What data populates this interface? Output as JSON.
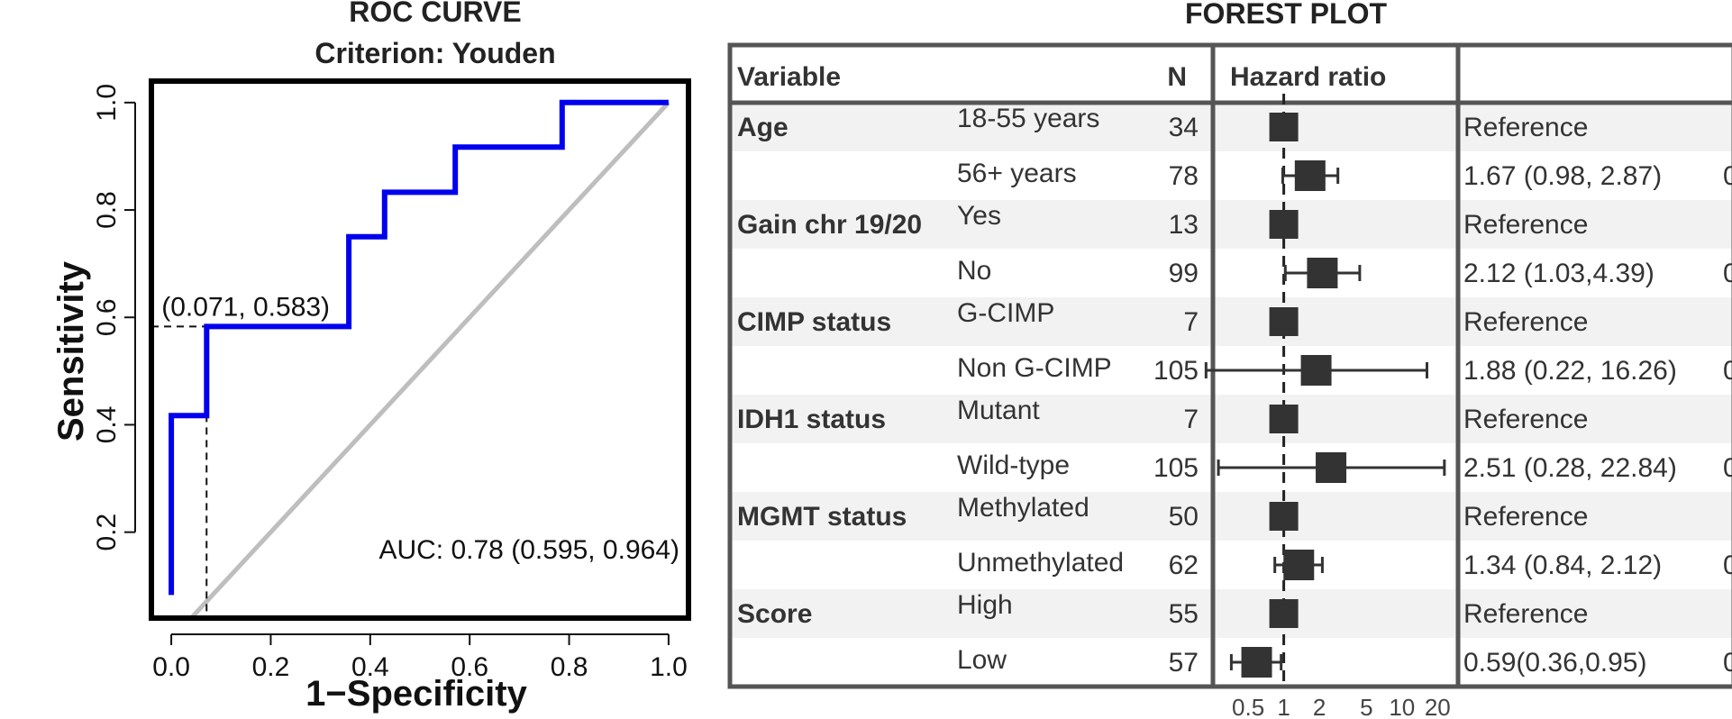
{
  "chart_data": [
    {
      "type": "line",
      "title": "ROC CURVE",
      "subtitle": "Criterion: Youden",
      "xlabel": "1−Specificity",
      "ylabel": "Sensitivity",
      "xlim": [
        -0.04,
        1.04
      ],
      "ylim": [
        0.04,
        1.04
      ],
      "xticks": [
        0.0,
        0.2,
        0.4,
        0.6,
        0.8,
        1.0
      ],
      "xtick_labels": [
        "0.0",
        "0.2",
        "0.4",
        "0.6",
        "0.8",
        "1.0"
      ],
      "yticks": [
        0.2,
        0.4,
        0.6,
        0.8,
        1.0
      ],
      "ytick_labels": [
        "0.2",
        "0.4",
        "0.6",
        "0.8",
        "1.0"
      ],
      "grid": false,
      "series": [
        {
          "color": "#0000ee",
          "x": [
            0.0,
            0.0,
            0.0,
            0.071,
            0.071,
            0.357,
            0.357,
            0.429,
            0.429,
            0.571,
            0.571,
            0.786,
            0.786,
            1.0
          ],
          "y": [
            0.083,
            0.417,
            0.417,
            0.417,
            0.583,
            0.583,
            0.75,
            0.75,
            0.833,
            0.833,
            0.917,
            0.917,
            1.0,
            1.0
          ]
        }
      ],
      "reference_line": {
        "color": "#bebebe",
        "x": [
          0.0,
          1.0
        ],
        "y": [
          0.0,
          1.0
        ]
      },
      "optimal_point": {
        "x": 0.071,
        "y": 0.583,
        "label": "(0.071, 0.583)"
      },
      "annotation": "AUC: 0.78 (0.595, 0.964)"
    },
    {
      "type": "table",
      "title": "FOREST PLOT",
      "headers": {
        "variable": "Variable",
        "n": "N",
        "hr": "Hazard ratio"
      },
      "axis_ticks": [
        0.5,
        1,
        2,
        5,
        10,
        20
      ],
      "axis_tick_labels": [
        "0.5",
        "1",
        "2",
        "5",
        "10",
        "20"
      ],
      "hr_axis_range": [
        0.3,
        25
      ],
      "reference_value": 1,
      "rows": [
        {
          "variable": "Age",
          "level": "18-55 years",
          "n": "34",
          "hr": 1,
          "lower": null,
          "upper": null,
          "text": "Reference",
          "p": ""
        },
        {
          "variable": "",
          "level": "56+ years",
          "n": "78",
          "hr": 1.67,
          "lower": 0.98,
          "upper": 2.87,
          "text": "1.67 (0.98, 2.87)",
          "p": "0"
        },
        {
          "variable": "Gain chr 19/20",
          "level": "Yes",
          "n": "13",
          "hr": 1,
          "lower": null,
          "upper": null,
          "text": "Reference",
          "p": ""
        },
        {
          "variable": "",
          "level": "No",
          "n": "99",
          "hr": 2.12,
          "lower": 1.03,
          "upper": 4.39,
          "text": "2.12 (1.03,4.39)",
          "p": "0"
        },
        {
          "variable": "CIMP status",
          "level": "G-CIMP",
          "n": "7",
          "hr": 1,
          "lower": null,
          "upper": null,
          "text": "Reference",
          "p": ""
        },
        {
          "variable": "",
          "level": "Non G-CIMP",
          "n": "105",
          "hr": 1.88,
          "lower": 0.22,
          "upper": 16.26,
          "text": "1.88 (0.22, 16.26)",
          "p": "0"
        },
        {
          "variable": "IDH1 status",
          "level": "Mutant",
          "n": "7",
          "hr": 1,
          "lower": null,
          "upper": null,
          "text": "Reference",
          "p": ""
        },
        {
          "variable": "",
          "level": "Wild-type",
          "n": "105",
          "hr": 2.51,
          "lower": 0.28,
          "upper": 22.84,
          "text": "2.51 (0.28, 22.84)",
          "p": "0"
        },
        {
          "variable": "MGMT status",
          "level": "Methylated",
          "n": "50",
          "hr": 1,
          "lower": null,
          "upper": null,
          "text": "Reference",
          "p": ""
        },
        {
          "variable": "",
          "level": "Unmethylated",
          "n": "62",
          "hr": 1.34,
          "lower": 0.84,
          "upper": 2.12,
          "text": "1.34 (0.84, 2.12)",
          "p": "0"
        },
        {
          "variable": "Score",
          "level": "High",
          "n": "55",
          "hr": 1,
          "lower": null,
          "upper": null,
          "text": "Reference",
          "p": ""
        },
        {
          "variable": "",
          "level": "Low",
          "n": "57",
          "hr": 0.59,
          "lower": 0.36,
          "upper": 0.95,
          "text": "0.59(0.36,0.95)",
          "p": "0"
        }
      ]
    }
  ]
}
